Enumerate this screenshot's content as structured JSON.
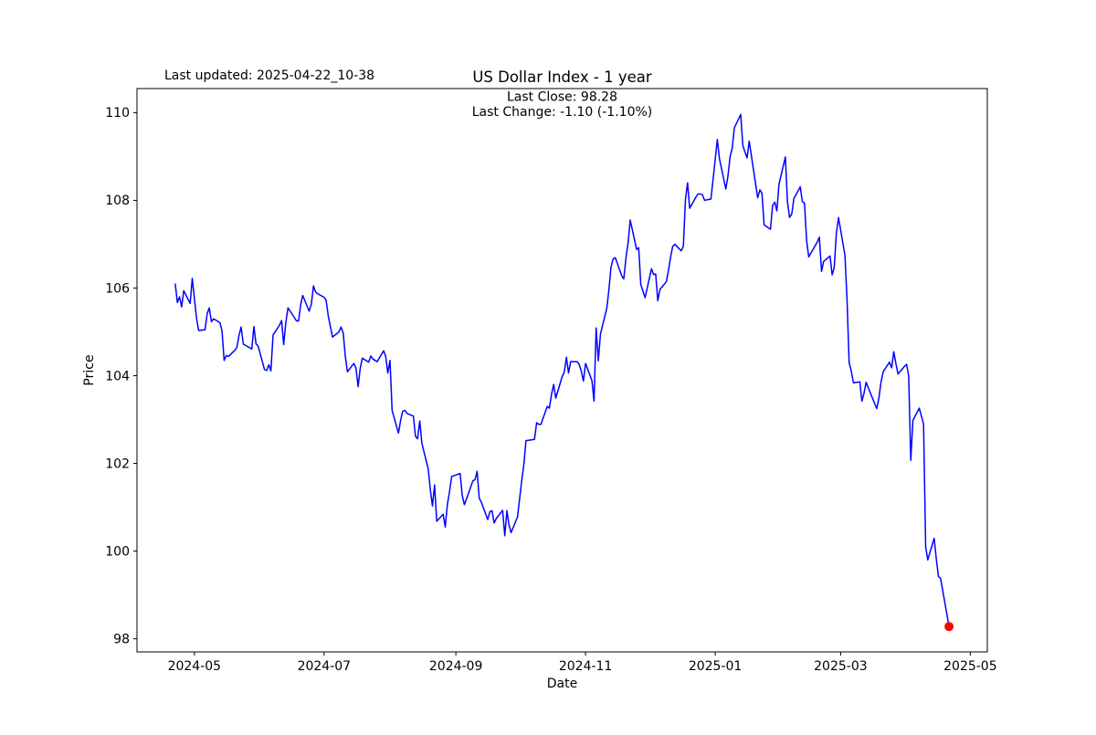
{
  "figure": {
    "last_updated": "Last updated: 2025-04-22_10-38",
    "background": "#ffffff"
  },
  "chart_data": {
    "type": "line",
    "title": "US Dollar Index - 1 year",
    "xlabel": "Date",
    "ylabel": "Price",
    "annotation": {
      "last_close_label": "Last Close: 98.28",
      "last_change_label": "Last Change: -1.10 (-1.10%)",
      "last_close": 98.28,
      "last_change": -1.1,
      "last_change_pct": "-1.10%"
    },
    "line_color": "#0000ff",
    "marker_color": "#ff0000",
    "grid": false,
    "legend_position": "none",
    "x_ticks": [
      "2024-05",
      "2024-07",
      "2024-09",
      "2024-11",
      "2025-01",
      "2025-03",
      "2025-05"
    ],
    "y_ticks": [
      98,
      100,
      102,
      104,
      106,
      108,
      110
    ],
    "x_range": [
      "2024-04-04",
      "2025-05-09"
    ],
    "ylim": [
      97.7,
      110.55
    ],
    "series": [
      {
        "name": "US Dollar Index",
        "points": [
          [
            "2024-04-22",
            106.09
          ],
          [
            "2024-04-23",
            105.67
          ],
          [
            "2024-04-24",
            105.8
          ],
          [
            "2024-04-25",
            105.57
          ],
          [
            "2024-04-26",
            105.94
          ],
          [
            "2024-04-29",
            105.65
          ],
          [
            "2024-04-30",
            106.22
          ],
          [
            "2024-05-01",
            105.77
          ],
          [
            "2024-05-02",
            105.31
          ],
          [
            "2024-05-03",
            105.03
          ],
          [
            "2024-05-06",
            105.05
          ],
          [
            "2024-05-07",
            105.41
          ],
          [
            "2024-05-08",
            105.55
          ],
          [
            "2024-05-09",
            105.23
          ],
          [
            "2024-05-10",
            105.3
          ],
          [
            "2024-05-13",
            105.21
          ],
          [
            "2024-05-14",
            105.02
          ],
          [
            "2024-05-15",
            104.35
          ],
          [
            "2024-05-16",
            104.46
          ],
          [
            "2024-05-17",
            104.44
          ],
          [
            "2024-05-20",
            104.58
          ],
          [
            "2024-05-21",
            104.65
          ],
          [
            "2024-05-22",
            104.92
          ],
          [
            "2024-05-23",
            105.11
          ],
          [
            "2024-05-24",
            104.72
          ],
          [
            "2024-05-28",
            104.61
          ],
          [
            "2024-05-29",
            105.12
          ],
          [
            "2024-05-30",
            104.73
          ],
          [
            "2024-05-31",
            104.67
          ],
          [
            "2024-06-03",
            104.14
          ],
          [
            "2024-06-04",
            104.12
          ],
          [
            "2024-06-05",
            104.25
          ],
          [
            "2024-06-06",
            104.11
          ],
          [
            "2024-06-07",
            104.93
          ],
          [
            "2024-06-10",
            105.15
          ],
          [
            "2024-06-11",
            105.26
          ],
          [
            "2024-06-12",
            104.71
          ],
          [
            "2024-06-13",
            105.2
          ],
          [
            "2024-06-14",
            105.55
          ],
          [
            "2024-06-17",
            105.33
          ],
          [
            "2024-06-18",
            105.25
          ],
          [
            "2024-06-19",
            105.25
          ],
          [
            "2024-06-20",
            105.62
          ],
          [
            "2024-06-21",
            105.83
          ],
          [
            "2024-06-24",
            105.47
          ],
          [
            "2024-06-25",
            105.63
          ],
          [
            "2024-06-26",
            106.05
          ],
          [
            "2024-06-27",
            105.91
          ],
          [
            "2024-06-28",
            105.87
          ],
          [
            "2024-07-01",
            105.79
          ],
          [
            "2024-07-02",
            105.72
          ],
          [
            "2024-07-03",
            105.35
          ],
          [
            "2024-07-05",
            104.88
          ],
          [
            "2024-07-08",
            105.0
          ],
          [
            "2024-07-09",
            105.11
          ],
          [
            "2024-07-10",
            104.97
          ],
          [
            "2024-07-11",
            104.44
          ],
          [
            "2024-07-12",
            104.09
          ],
          [
            "2024-07-15",
            104.28
          ],
          [
            "2024-07-16",
            104.18
          ],
          [
            "2024-07-17",
            103.75
          ],
          [
            "2024-07-18",
            104.17
          ],
          [
            "2024-07-19",
            104.4
          ],
          [
            "2024-07-22",
            104.31
          ],
          [
            "2024-07-23",
            104.45
          ],
          [
            "2024-07-24",
            104.38
          ],
          [
            "2024-07-25",
            104.35
          ],
          [
            "2024-07-26",
            104.32
          ],
          [
            "2024-07-29",
            104.57
          ],
          [
            "2024-07-30",
            104.44
          ],
          [
            "2024-07-31",
            104.06
          ],
          [
            "2024-08-01",
            104.35
          ],
          [
            "2024-08-02",
            103.21
          ],
          [
            "2024-08-05",
            102.69
          ],
          [
            "2024-08-06",
            102.98
          ],
          [
            "2024-08-07",
            103.19
          ],
          [
            "2024-08-08",
            103.21
          ],
          [
            "2024-08-09",
            103.14
          ],
          [
            "2024-08-12",
            103.08
          ],
          [
            "2024-08-13",
            102.62
          ],
          [
            "2024-08-14",
            102.56
          ],
          [
            "2024-08-15",
            102.97
          ],
          [
            "2024-08-16",
            102.46
          ],
          [
            "2024-08-19",
            101.87
          ],
          [
            "2024-08-20",
            101.39
          ],
          [
            "2024-08-21",
            101.03
          ],
          [
            "2024-08-22",
            101.51
          ],
          [
            "2024-08-23",
            100.68
          ],
          [
            "2024-08-26",
            100.84
          ],
          [
            "2024-08-27",
            100.55
          ],
          [
            "2024-08-28",
            101.06
          ],
          [
            "2024-08-29",
            101.34
          ],
          [
            "2024-08-30",
            101.7
          ],
          [
            "2024-09-03",
            101.77
          ],
          [
            "2024-09-04",
            101.27
          ],
          [
            "2024-09-05",
            101.06
          ],
          [
            "2024-09-06",
            101.19
          ],
          [
            "2024-09-09",
            101.6
          ],
          [
            "2024-09-10",
            101.63
          ],
          [
            "2024-09-11",
            101.82
          ],
          [
            "2024-09-12",
            101.21
          ],
          [
            "2024-09-13",
            101.11
          ],
          [
            "2024-09-16",
            100.72
          ],
          [
            "2024-09-17",
            100.9
          ],
          [
            "2024-09-18",
            100.92
          ],
          [
            "2024-09-19",
            100.64
          ],
          [
            "2024-09-20",
            100.74
          ],
          [
            "2024-09-23",
            100.93
          ],
          [
            "2024-09-24",
            100.35
          ],
          [
            "2024-09-25",
            100.92
          ],
          [
            "2024-09-26",
            100.6
          ],
          [
            "2024-09-27",
            100.42
          ],
          [
            "2024-09-30",
            100.78
          ],
          [
            "2024-10-01",
            101.2
          ],
          [
            "2024-10-02",
            101.62
          ],
          [
            "2024-10-03",
            101.98
          ],
          [
            "2024-10-04",
            102.52
          ],
          [
            "2024-10-07",
            102.54
          ],
          [
            "2024-10-08",
            102.55
          ],
          [
            "2024-10-09",
            102.93
          ],
          [
            "2024-10-10",
            102.89
          ],
          [
            "2024-10-11",
            102.89
          ],
          [
            "2024-10-14",
            103.3
          ],
          [
            "2024-10-15",
            103.26
          ],
          [
            "2024-10-16",
            103.58
          ],
          [
            "2024-10-17",
            103.8
          ],
          [
            "2024-10-18",
            103.49
          ],
          [
            "2024-10-21",
            103.98
          ],
          [
            "2024-10-22",
            104.08
          ],
          [
            "2024-10-23",
            104.42
          ],
          [
            "2024-10-24",
            104.06
          ],
          [
            "2024-10-25",
            104.32
          ],
          [
            "2024-10-28",
            104.32
          ],
          [
            "2024-10-29",
            104.26
          ],
          [
            "2024-10-30",
            104.11
          ],
          [
            "2024-10-31",
            103.88
          ],
          [
            "2024-11-01",
            104.28
          ],
          [
            "2024-11-04",
            103.89
          ],
          [
            "2024-11-05",
            103.42
          ],
          [
            "2024-11-06",
            105.09
          ],
          [
            "2024-11-07",
            104.34
          ],
          [
            "2024-11-08",
            104.95
          ],
          [
            "2024-11-11",
            105.54
          ],
          [
            "2024-11-12",
            105.96
          ],
          [
            "2024-11-13",
            106.48
          ],
          [
            "2024-11-14",
            106.67
          ],
          [
            "2024-11-15",
            106.69
          ],
          [
            "2024-11-18",
            106.28
          ],
          [
            "2024-11-19",
            106.21
          ],
          [
            "2024-11-20",
            106.68
          ],
          [
            "2024-11-21",
            107.03
          ],
          [
            "2024-11-22",
            107.55
          ],
          [
            "2024-11-25",
            106.88
          ],
          [
            "2024-11-26",
            106.92
          ],
          [
            "2024-11-27",
            106.08
          ],
          [
            "2024-11-29",
            105.78
          ],
          [
            "2024-12-02",
            106.44
          ],
          [
            "2024-12-03",
            106.31
          ],
          [
            "2024-12-04",
            106.32
          ],
          [
            "2024-12-05",
            105.71
          ],
          [
            "2024-12-06",
            105.97
          ],
          [
            "2024-12-09",
            106.14
          ],
          [
            "2024-12-10",
            106.4
          ],
          [
            "2024-12-11",
            106.7
          ],
          [
            "2024-12-12",
            106.95
          ],
          [
            "2024-12-13",
            107.0
          ],
          [
            "2024-12-16",
            106.85
          ],
          [
            "2024-12-17",
            106.95
          ],
          [
            "2024-12-18",
            108.02
          ],
          [
            "2024-12-19",
            108.4
          ],
          [
            "2024-12-20",
            107.82
          ],
          [
            "2024-12-23",
            108.08
          ],
          [
            "2024-12-24",
            108.15
          ],
          [
            "2024-12-26",
            108.13
          ],
          [
            "2024-12-27",
            108.0
          ],
          [
            "2024-12-30",
            108.03
          ],
          [
            "2024-12-31",
            108.49
          ],
          [
            "2025-01-02",
            109.39
          ],
          [
            "2025-01-03",
            108.95
          ],
          [
            "2025-01-06",
            108.26
          ],
          [
            "2025-01-07",
            108.55
          ],
          [
            "2025-01-08",
            109.0
          ],
          [
            "2025-01-09",
            109.19
          ],
          [
            "2025-01-10",
            109.65
          ],
          [
            "2025-01-13",
            109.96
          ],
          [
            "2025-01-14",
            109.25
          ],
          [
            "2025-01-15",
            109.1
          ],
          [
            "2025-01-16",
            108.97
          ],
          [
            "2025-01-17",
            109.35
          ],
          [
            "2025-01-21",
            108.06
          ],
          [
            "2025-01-22",
            108.24
          ],
          [
            "2025-01-23",
            108.16
          ],
          [
            "2025-01-24",
            107.44
          ],
          [
            "2025-01-27",
            107.34
          ],
          [
            "2025-01-28",
            107.88
          ],
          [
            "2025-01-29",
            107.96
          ],
          [
            "2025-01-30",
            107.76
          ],
          [
            "2025-01-31",
            108.37
          ],
          [
            "2025-02-03",
            108.99
          ],
          [
            "2025-02-04",
            107.96
          ],
          [
            "2025-02-05",
            107.61
          ],
          [
            "2025-02-06",
            107.69
          ],
          [
            "2025-02-07",
            108.04
          ],
          [
            "2025-02-10",
            108.31
          ],
          [
            "2025-02-11",
            107.97
          ],
          [
            "2025-02-12",
            107.94
          ],
          [
            "2025-02-13",
            107.07
          ],
          [
            "2025-02-14",
            106.71
          ],
          [
            "2025-02-18",
            107.05
          ],
          [
            "2025-02-19",
            107.16
          ],
          [
            "2025-02-20",
            106.38
          ],
          [
            "2025-02-21",
            106.61
          ],
          [
            "2025-02-24",
            106.73
          ],
          [
            "2025-02-25",
            106.3
          ],
          [
            "2025-02-26",
            106.47
          ],
          [
            "2025-02-27",
            107.24
          ],
          [
            "2025-02-28",
            107.61
          ],
          [
            "2025-03-03",
            106.75
          ],
          [
            "2025-03-04",
            105.74
          ],
          [
            "2025-03-05",
            104.3
          ],
          [
            "2025-03-06",
            104.11
          ],
          [
            "2025-03-07",
            103.84
          ],
          [
            "2025-03-10",
            103.86
          ],
          [
            "2025-03-11",
            103.42
          ],
          [
            "2025-03-12",
            103.6
          ],
          [
            "2025-03-13",
            103.85
          ],
          [
            "2025-03-14",
            103.72
          ],
          [
            "2025-03-17",
            103.37
          ],
          [
            "2025-03-18",
            103.25
          ],
          [
            "2025-03-19",
            103.49
          ],
          [
            "2025-03-20",
            103.85
          ],
          [
            "2025-03-21",
            104.09
          ],
          [
            "2025-03-24",
            104.31
          ],
          [
            "2025-03-25",
            104.18
          ],
          [
            "2025-03-26",
            104.55
          ],
          [
            "2025-03-27",
            104.28
          ],
          [
            "2025-03-28",
            104.04
          ],
          [
            "2025-03-31",
            104.21
          ],
          [
            "2025-04-01",
            104.26
          ],
          [
            "2025-04-02",
            104.0
          ],
          [
            "2025-04-03",
            102.07
          ],
          [
            "2025-04-04",
            102.98
          ],
          [
            "2025-04-07",
            103.26
          ],
          [
            "2025-04-08",
            103.08
          ],
          [
            "2025-04-09",
            102.9
          ],
          [
            "2025-04-10",
            100.1
          ],
          [
            "2025-04-11",
            99.8
          ],
          [
            "2025-04-14",
            100.29
          ],
          [
            "2025-04-15",
            99.83
          ],
          [
            "2025-04-16",
            99.42
          ],
          [
            "2025-04-17",
            99.38
          ],
          [
            "2025-04-21",
            98.28
          ]
        ]
      }
    ]
  }
}
